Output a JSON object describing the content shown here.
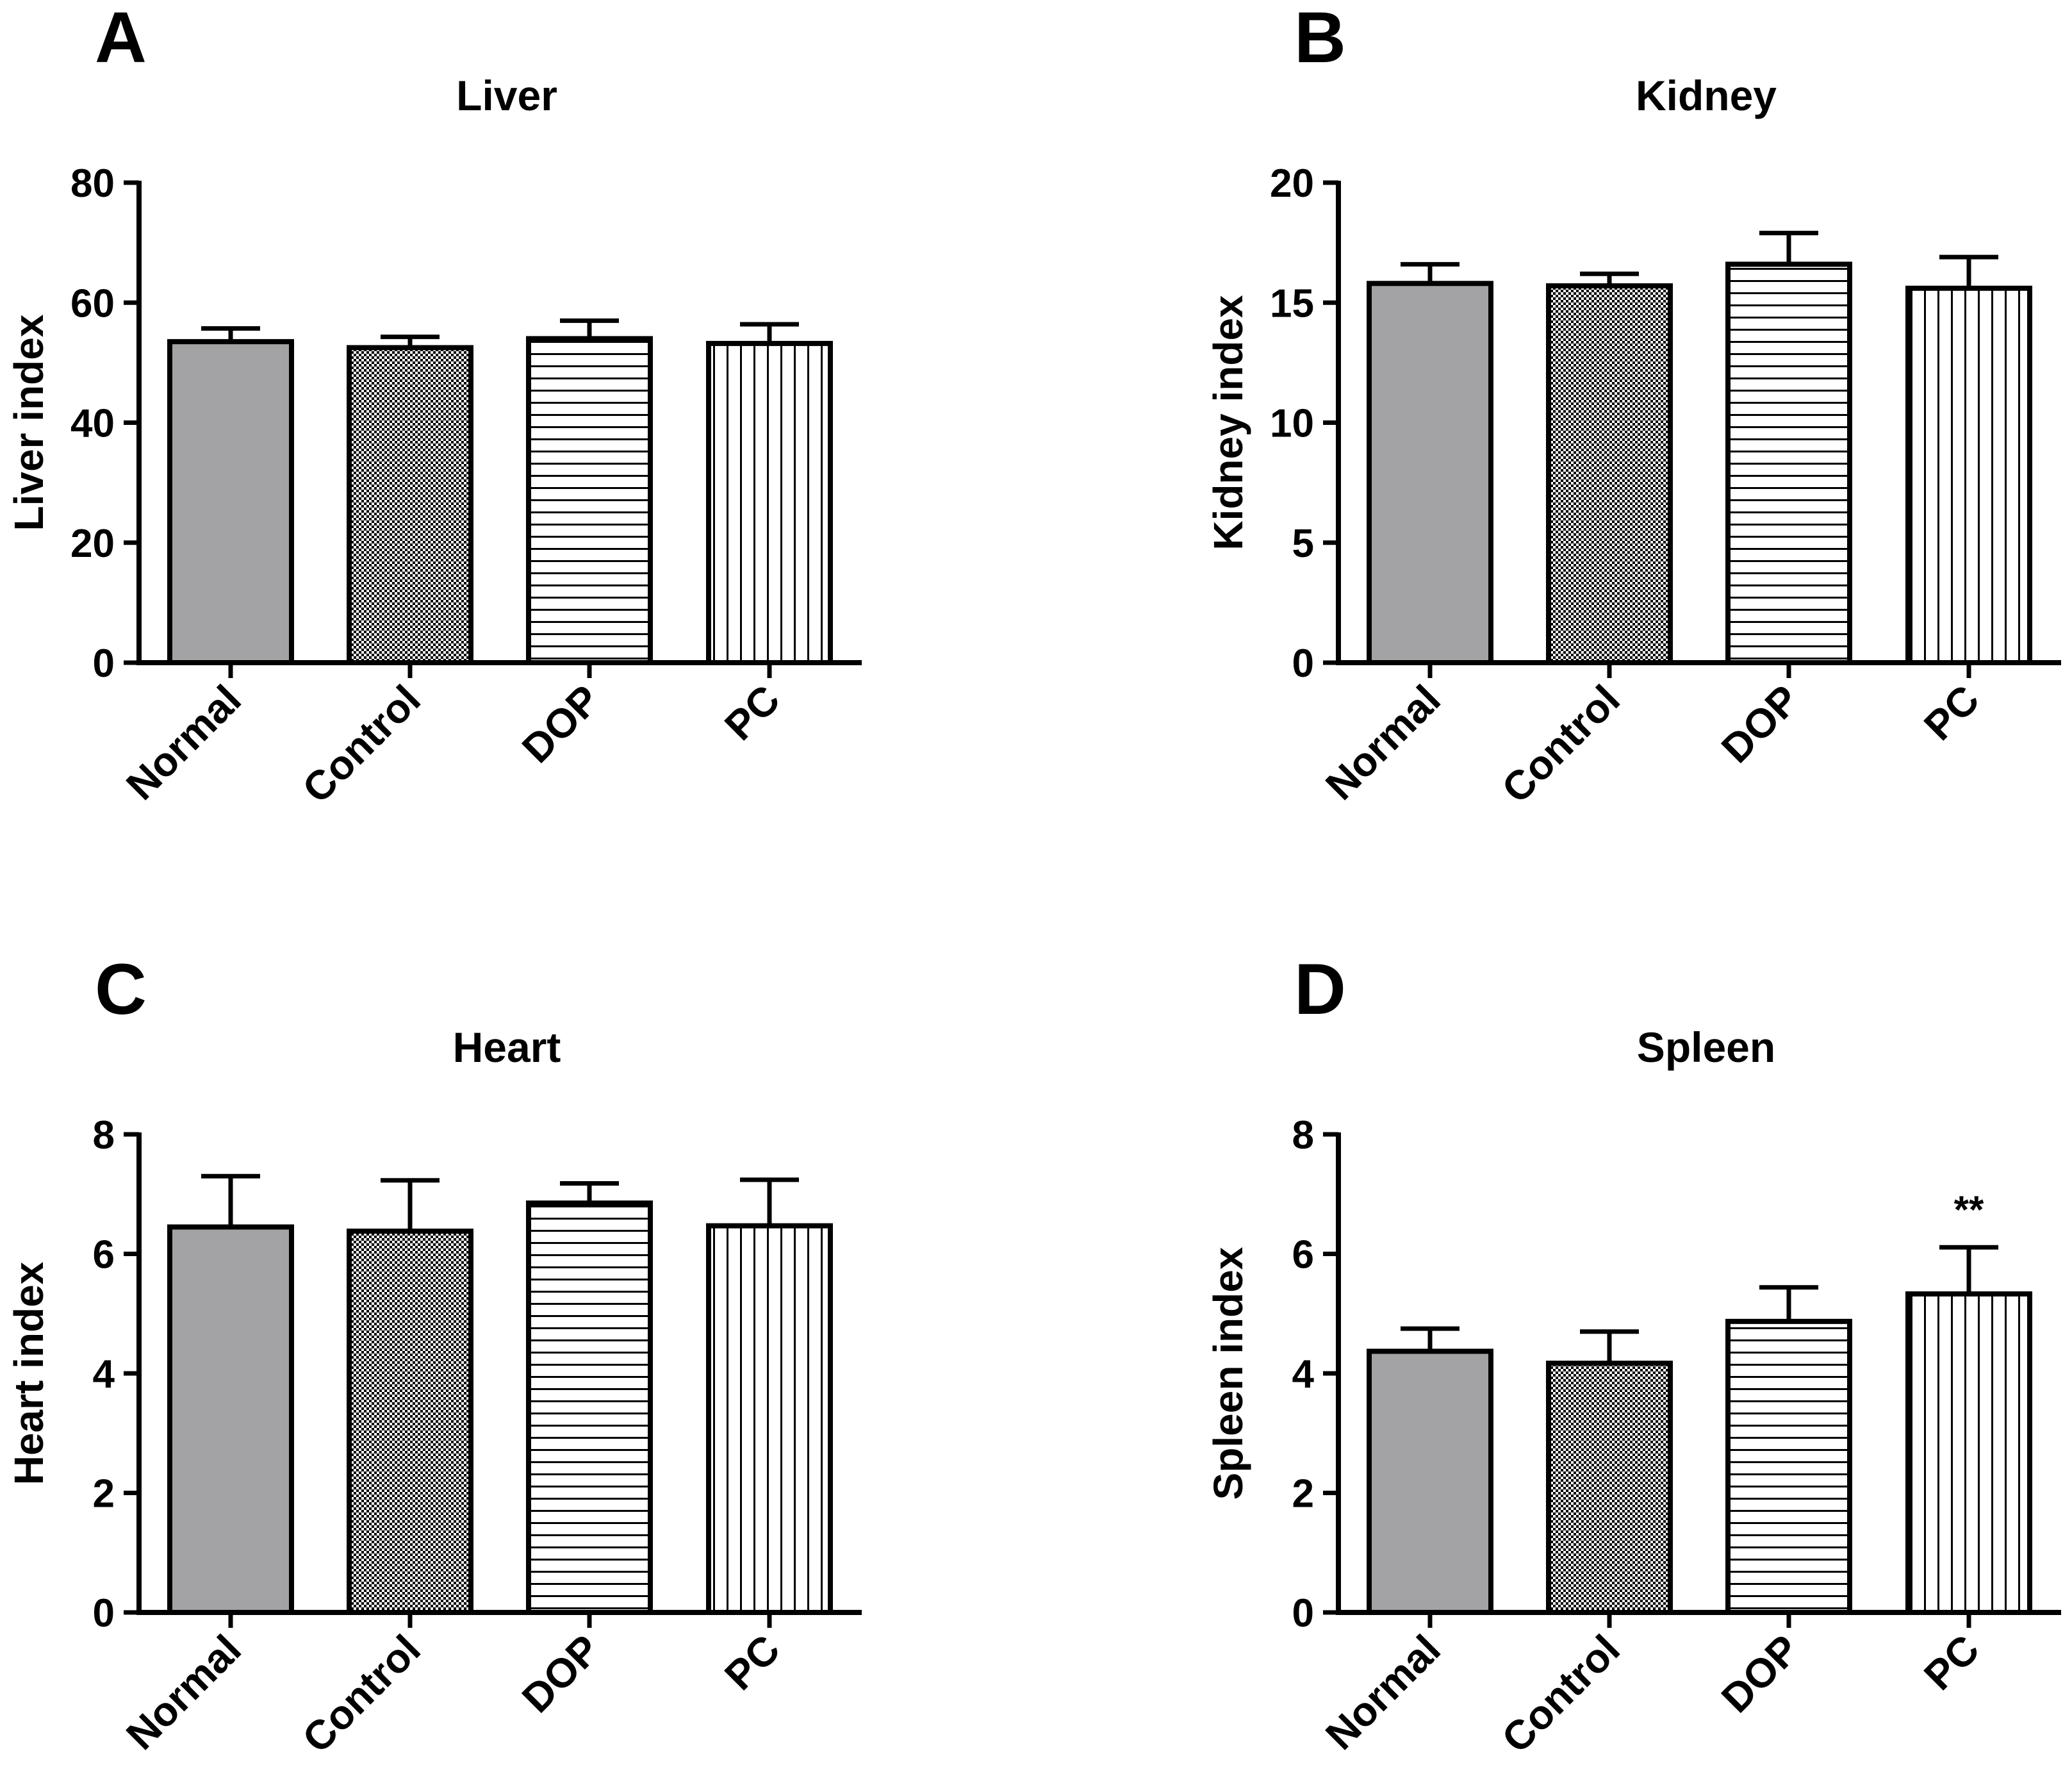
{
  "figure": {
    "colors": {
      "axis": "#000000",
      "normal_fill": "#a3a3a6",
      "pattern_fill": "#ffffff"
    },
    "bar_patterns": [
      "solid-gray",
      "checkerboard",
      "horizontal-lines",
      "vertical-lines"
    ]
  },
  "chart_data": [
    {
      "panel_label": "A",
      "type": "bar",
      "title": "Liver",
      "xlabel": "",
      "ylabel": "Liver index",
      "ylim": [
        0,
        80
      ],
      "yticks": [
        0,
        20,
        40,
        60,
        80
      ],
      "ytick_labels": [
        "0",
        "20",
        "40",
        "60",
        "80"
      ],
      "categories": [
        "Normal",
        "Control",
        "DOP",
        "PC"
      ],
      "values": [
        53.5,
        52.5,
        54.0,
        53.2
      ],
      "errors": [
        2.2,
        1.8,
        3.0,
        3.2
      ],
      "annotations": []
    },
    {
      "panel_label": "B",
      "type": "bar",
      "title": "Kidney",
      "xlabel": "",
      "ylabel": "Kidney index",
      "ylim": [
        0,
        20
      ],
      "yticks": [
        0,
        5,
        10,
        15,
        20
      ],
      "ytick_labels": [
        "0",
        "5",
        "10",
        "15",
        "20"
      ],
      "categories": [
        "Normal",
        "Control",
        "DOP",
        "PC"
      ],
      "values": [
        15.8,
        15.7,
        16.6,
        15.6
      ],
      "errors": [
        0.8,
        0.5,
        1.3,
        1.3
      ],
      "annotations": []
    },
    {
      "panel_label": "C",
      "type": "bar",
      "title": "Heart",
      "xlabel": "",
      "ylabel": "Heart index",
      "ylim": [
        0,
        8
      ],
      "yticks": [
        0,
        2,
        4,
        6,
        8
      ],
      "ytick_labels": [
        "0",
        "2",
        "4",
        "6",
        "8"
      ],
      "categories": [
        "Normal",
        "Control",
        "DOP",
        "PC"
      ],
      "values": [
        6.45,
        6.38,
        6.85,
        6.47
      ],
      "errors": [
        0.85,
        0.85,
        0.33,
        0.77
      ],
      "annotations": []
    },
    {
      "panel_label": "D",
      "type": "bar",
      "title": "Spleen",
      "xlabel": "",
      "ylabel": "Spleen index",
      "ylim": [
        0,
        8
      ],
      "yticks": [
        0,
        2,
        4,
        6,
        8
      ],
      "ytick_labels": [
        "0",
        "2",
        "4",
        "6",
        "8"
      ],
      "categories": [
        "Normal",
        "Control",
        "DOP",
        "PC"
      ],
      "values": [
        4.37,
        4.17,
        4.87,
        5.33
      ],
      "errors": [
        0.38,
        0.53,
        0.57,
        0.78
      ],
      "annotations": [
        {
          "category": "PC",
          "text": "**"
        }
      ]
    }
  ]
}
